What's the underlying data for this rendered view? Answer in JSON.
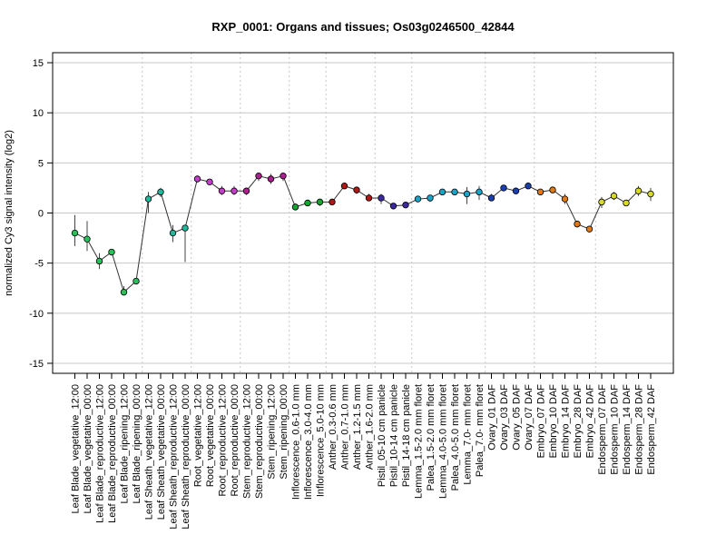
{
  "chart_data": {
    "type": "line",
    "title": "RXP_0001: Organs and tissues; Os03g0246500_42844",
    "xlabel": "",
    "ylabel": "normalized Cy3 signal intensity (log2)",
    "ylim": [
      -16,
      16
    ],
    "yticks": [
      -15,
      -10,
      -5,
      0,
      5,
      10,
      15
    ],
    "grid": true,
    "categories": [
      "Leaf Blade_vegetative_12:00",
      "Leaf Blade_vegetative_00:00",
      "Leaf Blade_reproductive_12:00",
      "Leaf Blade_reproductive_00:00",
      "Leaf Blade_ripening_12:00",
      "Leaf Blade_ripening_00:00",
      "Leaf Sheath_vegetative_12:00",
      "Leaf Sheath_vegetative_00:00",
      "Leaf Sheath_reproductive_12:00",
      "Leaf Sheath_reproductive_00:00",
      "Root_vegetative_12:00",
      "Root_vegetative_00:00",
      "Root_reproductive_12:00",
      "Root_reproductive_00:00",
      "Stem_reproductive_12:00",
      "Stem_reproductive_00:00",
      "Stem_ripening_12:00",
      "Stem_ripening_00:00",
      "Inflorescence_0.6-1.0 mm",
      "Inflorescence_3.0-4.0 mm",
      "Inflorescence_5.0-10 mm",
      "Anther_0.3-0.6 mm",
      "Anther_0.7-1.0 mm",
      "Anther_1.2-1.5 mm",
      "Anther_1.6-2.0 mm",
      "Pistil_05-10 cm panicle",
      "Pistil_10-14 cm panicle",
      "Pistil_14-18 cm panicle",
      "Lemma_1.5-2.0 mm floret",
      "Palea_1.5-2.0 mm floret",
      "Lemma_4.0-5.0 mm floret",
      "Palea_4.0-5.0 mm floret",
      "Lemma_7.0- mm floret",
      "Palea_7.0- mm floret",
      "Ovary_01 DAF",
      "Ovary_03 DAF",
      "Ovary_05 DAF",
      "Ovary_07 DAF",
      "Embryo_07 DAF",
      "Embryo_10 DAF",
      "Embryo_14 DAF",
      "Embryo_28 DAF",
      "Embryo_42 DAF",
      "Endosperm_07 DAF",
      "Endosperm_10 DAF",
      "Endosperm_14 DAF",
      "Endosperm_28 DAF",
      "Endosperm_42 DAF"
    ],
    "values": [
      -2.0,
      -2.6,
      -4.8,
      -3.9,
      -7.9,
      -6.8,
      1.4,
      2.1,
      -2.0,
      -1.5,
      3.4,
      3.1,
      2.2,
      2.2,
      2.2,
      3.7,
      3.4,
      3.7,
      0.6,
      1.0,
      1.1,
      1.1,
      2.7,
      2.3,
      1.5,
      1.5,
      0.7,
      0.8,
      1.4,
      1.5,
      2.1,
      2.1,
      1.9,
      2.1,
      1.5,
      2.5,
      2.2,
      2.7,
      2.1,
      2.3,
      1.4,
      -1.1,
      -1.6,
      1.1,
      1.7,
      1.0,
      2.2,
      1.9
    ],
    "error_low": [
      -3.3,
      -3.8,
      -5.6,
      -4.2,
      -8.2,
      -7.0,
      0.0,
      1.6,
      -2.9,
      -4.9,
      3.1,
      2.9,
      1.8,
      1.8,
      1.8,
      3.2,
      2.9,
      3.2,
      0.4,
      0.7,
      0.7,
      0.8,
      2.5,
      1.9,
      1.2,
      0.9,
      0.5,
      0.5,
      1.1,
      1.1,
      1.8,
      1.8,
      0.9,
      1.3,
      1.2,
      2.2,
      1.9,
      2.4,
      1.8,
      2.0,
      0.9,
      -1.3,
      -1.7,
      0.5,
      1.3,
      0.8,
      1.7,
      1.2
    ],
    "error_high": [
      -0.2,
      -0.8,
      -4.0,
      -3.6,
      -7.3,
      -6.5,
      2.1,
      2.5,
      -1.2,
      -1.2,
      3.6,
      3.3,
      2.7,
      2.7,
      2.5,
      4.0,
      3.9,
      4.0,
      0.8,
      1.3,
      1.3,
      1.3,
      2.9,
      2.6,
      1.9,
      1.9,
      1.0,
      1.1,
      1.6,
      1.8,
      2.3,
      2.4,
      2.6,
      2.7,
      1.9,
      2.8,
      2.5,
      3.0,
      2.4,
      2.6,
      1.9,
      -0.9,
      -1.4,
      1.6,
      2.1,
      1.3,
      2.7,
      2.5
    ],
    "point_colors": [
      "#27c25a",
      "#27c25a",
      "#27c25a",
      "#27c25a",
      "#27c25a",
      "#27c25a",
      "#1fb89a",
      "#1fb89a",
      "#1fb89a",
      "#1fb89a",
      "#c43fc7",
      "#c43fc7",
      "#c43fc7",
      "#c43fc7",
      "#a9218e",
      "#a9218e",
      "#a9218e",
      "#a9218e",
      "#12a830",
      "#12a830",
      "#12a830",
      "#b01818",
      "#b01818",
      "#b01818",
      "#b01818",
      "#3a2a9e",
      "#3a2a9e",
      "#3a2a9e",
      "#1aa5c8",
      "#1aa5c8",
      "#1aa5c8",
      "#1aa5c8",
      "#1aa5c8",
      "#1aa5c8",
      "#1a3fb3",
      "#1a3fb3",
      "#1a3fb3",
      "#1a3fb3",
      "#e07a18",
      "#e07a18",
      "#e07a18",
      "#e07a18",
      "#e07a18",
      "#d8d82a",
      "#d8d82a",
      "#d8d82a",
      "#d8d82a",
      "#d8d82a"
    ],
    "group_separators_after": [
      5,
      9,
      13,
      17,
      20,
      24,
      27,
      33,
      37,
      42
    ]
  }
}
